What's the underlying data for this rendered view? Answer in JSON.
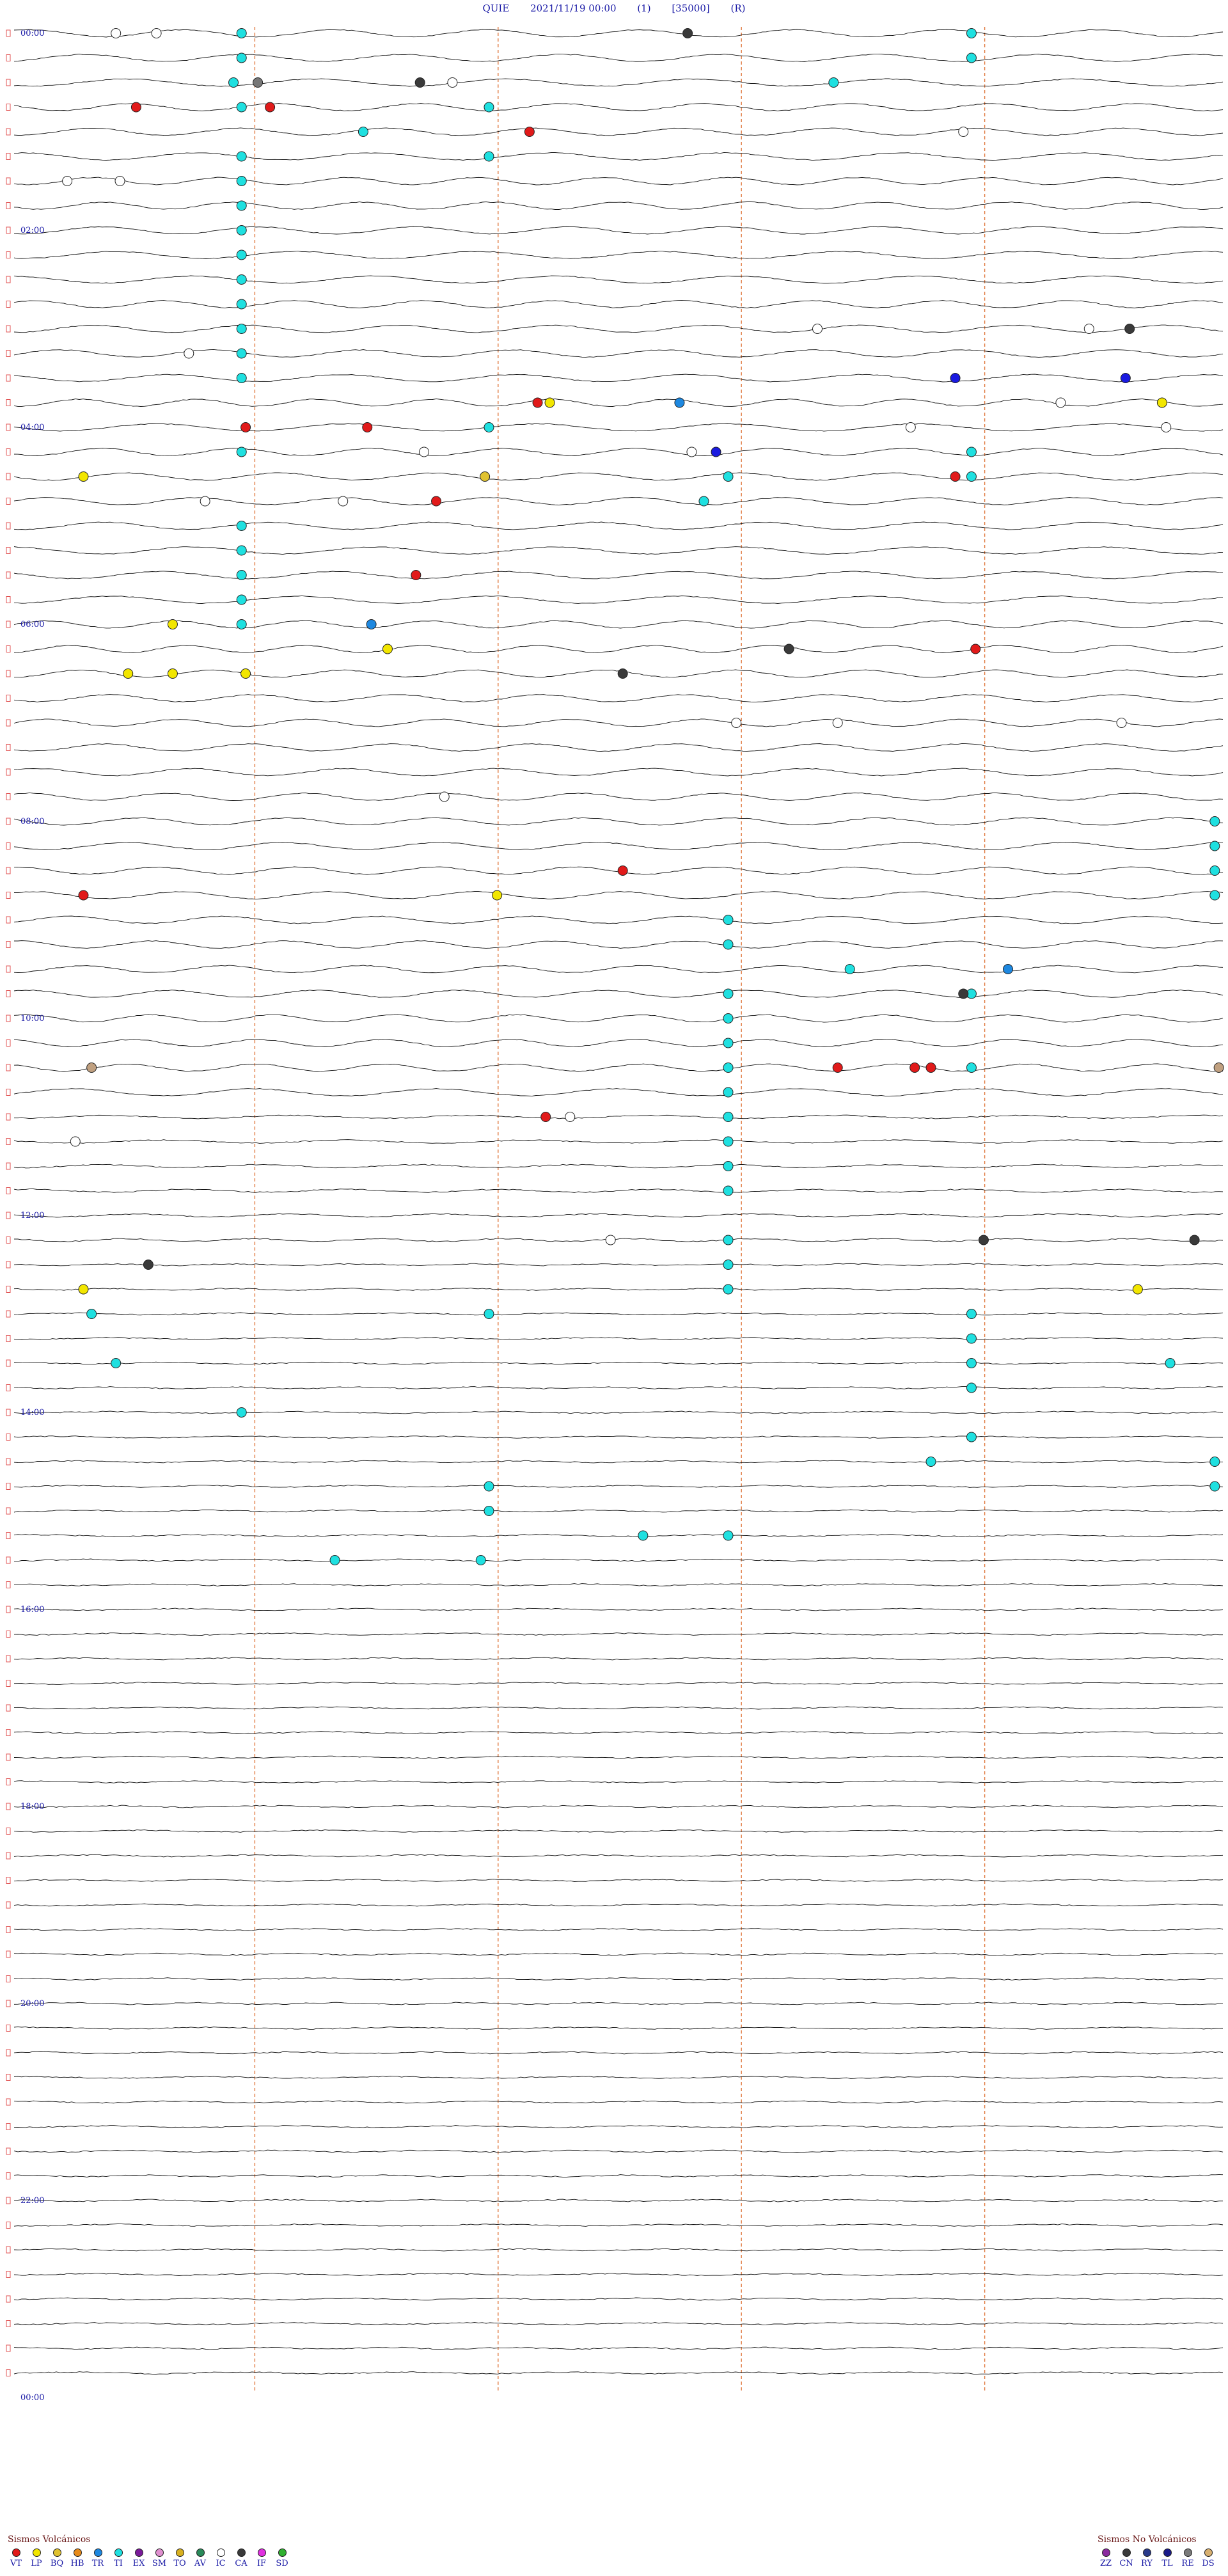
{
  "header": {
    "station": "QUIE",
    "datetime": "2021/11/19 00:00",
    "channel": "(1)",
    "scale": "[35000]",
    "mode": "(R)"
  },
  "chart_data": {
    "type": "scatter",
    "title": "QUIE 2021/11/19 00:00",
    "rows": 96,
    "minutes_per_row": 15,
    "x_range_minutes": [
      0,
      15
    ],
    "hour_labels": [
      {
        "row": 0,
        "label": "00:00"
      },
      {
        "row": 8,
        "label": "02:00"
      },
      {
        "row": 16,
        "label": "04:00"
      },
      {
        "row": 24,
        "label": "06:00"
      },
      {
        "row": 32,
        "label": "08:00"
      },
      {
        "row": 40,
        "label": "10:00"
      },
      {
        "row": 48,
        "label": "12:00"
      },
      {
        "row": 56,
        "label": "14:00"
      },
      {
        "row": 64,
        "label": "16:00"
      },
      {
        "row": 72,
        "label": "18:00"
      },
      {
        "row": 80,
        "label": "20:00"
      },
      {
        "row": 88,
        "label": "22:00"
      },
      {
        "row": 96,
        "label": "00:00"
      }
    ],
    "marker_minutes": [
      3.0,
      6.0,
      9.0,
      12.0
    ],
    "colors": {
      "VT": "#e11a1a",
      "LP": "#f2e600",
      "BQ": "#e0c230",
      "HB": "#e68a1a",
      "TR": "#1e88e0",
      "TI": "#1fe0e0",
      "EX": "#7a1a9a",
      "SM": "#e090d0",
      "TO": "#d8b020",
      "AV": "#2a8a5a",
      "IC": "#ffffff",
      "CA": "#3a3a3a",
      "IF": "#e030e0",
      "SD": "#30b030",
      "ZZ": "#8a2aa0",
      "CN": "#3a3a3a",
      "RY": "#2a3a8a",
      "TL": "#1a1a8a",
      "RE": "#7a7a7a",
      "DS": "#d8b070",
      "GR": "#777777",
      "BG": "#c0a080",
      "DB": "#1a1ae0"
    },
    "events": [
      {
        "type": "IC",
        "row": 0,
        "minute": 1.35
      },
      {
        "type": "IC",
        "row": 0,
        "minute": 1.85
      },
      {
        "type": "TI",
        "row": 0,
        "minute": 2.9
      },
      {
        "type": "CA",
        "row": 0,
        "minute": 8.4
      },
      {
        "type": "TI",
        "row": 0,
        "minute": 11.9
      },
      {
        "type": "TI",
        "row": 1,
        "minute": 2.9
      },
      {
        "type": "TI",
        "row": 1,
        "minute": 11.9
      },
      {
        "type": "CA",
        "row": 2,
        "minute": 5.1
      },
      {
        "type": "IC",
        "row": 2,
        "minute": 5.5
      },
      {
        "type": "TI",
        "row": 2,
        "minute": 2.8
      },
      {
        "type": "GR",
        "row": 2,
        "minute": 3.1
      },
      {
        "type": "TI",
        "row": 2,
        "minute": 10.2
      },
      {
        "type": "VT",
        "row": 3,
        "minute": 1.6
      },
      {
        "type": "VT",
        "row": 3,
        "minute": 3.25
      },
      {
        "type": "TI",
        "row": 3,
        "minute": 2.9
      },
      {
        "type": "TI",
        "row": 3,
        "minute": 5.95
      },
      {
        "type": "TI",
        "row": 4,
        "minute": 4.4
      },
      {
        "type": "VT",
        "row": 4,
        "minute": 6.45
      },
      {
        "type": "IC",
        "row": 4,
        "minute": 11.8
      },
      {
        "type": "TI",
        "row": 5,
        "minute": 2.9
      },
      {
        "type": "TI",
        "row": 5,
        "minute": 5.95
      },
      {
        "type": "TI",
        "row": 6,
        "minute": 2.9
      },
      {
        "type": "IC",
        "row": 6,
        "minute": 0.75
      },
      {
        "type": "IC",
        "row": 6,
        "minute": 1.4
      },
      {
        "type": "TI",
        "row": 7,
        "minute": 2.9
      },
      {
        "type": "TI",
        "row": 8,
        "minute": 2.9
      },
      {
        "type": "TI",
        "row": 9,
        "minute": 2.9
      },
      {
        "type": "TI",
        "row": 10,
        "minute": 2.9
      },
      {
        "type": "TI",
        "row": 11,
        "minute": 2.9
      },
      {
        "type": "TI",
        "row": 12,
        "minute": 2.9
      },
      {
        "type": "IC",
        "row": 12,
        "minute": 10.0
      },
      {
        "type": "IC",
        "row": 12,
        "minute": 13.35
      },
      {
        "type": "CA",
        "row": 12,
        "minute": 13.85
      },
      {
        "type": "TI",
        "row": 13,
        "minute": 2.9
      },
      {
        "type": "IC",
        "row": 13,
        "minute": 2.25
      },
      {
        "type": "DB",
        "row": 14,
        "minute": 11.7
      },
      {
        "type": "DB",
        "row": 14,
        "minute": 13.8
      },
      {
        "type": "TI",
        "row": 14,
        "minute": 2.9
      },
      {
        "type": "VT",
        "row": 15,
        "minute": 6.55
      },
      {
        "type": "LP",
        "row": 15,
        "minute": 6.7
      },
      {
        "type": "TR",
        "row": 15,
        "minute": 8.3
      },
      {
        "type": "IC",
        "row": 15,
        "minute": 13.0
      },
      {
        "type": "LP",
        "row": 15,
        "minute": 14.25
      },
      {
        "type": "VT",
        "row": 16,
        "minute": 2.95
      },
      {
        "type": "VT",
        "row": 16,
        "minute": 4.45
      },
      {
        "type": "TI",
        "row": 16,
        "minute": 5.95
      },
      {
        "type": "IC",
        "row": 16,
        "minute": 11.15
      },
      {
        "type": "IC",
        "row": 16,
        "minute": 14.3
      },
      {
        "type": "TI",
        "row": 17,
        "minute": 2.9
      },
      {
        "type": "IC",
        "row": 17,
        "minute": 5.15
      },
      {
        "type": "IC",
        "row": 17,
        "minute": 8.45
      },
      {
        "type": "TI",
        "row": 17,
        "minute": 11.9
      },
      {
        "type": "DB",
        "row": 17,
        "minute": 8.75
      },
      {
        "type": "LP",
        "row": 18,
        "minute": 0.95
      },
      {
        "type": "VT",
        "row": 18,
        "minute": 11.7
      },
      {
        "type": "TI",
        "row": 18,
        "minute": 11.9
      },
      {
        "type": "BQ",
        "row": 18,
        "minute": 5.9
      },
      {
        "type": "TI",
        "row": 18,
        "minute": 8.9
      },
      {
        "type": "IC",
        "row": 19,
        "minute": 2.45
      },
      {
        "type": "IC",
        "row": 19,
        "minute": 4.15
      },
      {
        "type": "VT",
        "row": 19,
        "minute": 5.3
      },
      {
        "type": "TI",
        "row": 19,
        "minute": 8.6
      },
      {
        "type": "TI",
        "row": 20,
        "minute": 2.9
      },
      {
        "type": "TI",
        "row": 21,
        "minute": 2.9
      },
      {
        "type": "VT",
        "row": 22,
        "minute": 5.05
      },
      {
        "type": "TI",
        "row": 22,
        "minute": 2.9
      },
      {
        "type": "TI",
        "row": 23,
        "minute": 2.9
      },
      {
        "type": "TI",
        "row": 24,
        "minute": 2.9
      },
      {
        "type": "TR",
        "row": 24,
        "minute": 4.5
      },
      {
        "type": "LP",
        "row": 24,
        "minute": 2.05
      },
      {
        "type": "CA",
        "row": 25,
        "minute": 9.65
      },
      {
        "type": "LP",
        "row": 25,
        "minute": 4.7
      },
      {
        "type": "VT",
        "row": 25,
        "minute": 11.95
      },
      {
        "type": "LP",
        "row": 26,
        "minute": 1.5
      },
      {
        "type": "LP",
        "row": 26,
        "minute": 2.05
      },
      {
        "type": "LP",
        "row": 26,
        "minute": 2.95
      },
      {
        "type": "CA",
        "row": 26,
        "minute": 7.6
      },
      {
        "type": "IC",
        "row": 28,
        "minute": 9.0
      },
      {
        "type": "IC",
        "row": 28,
        "minute": 10.25
      },
      {
        "type": "IC",
        "row": 28,
        "minute": 13.75
      },
      {
        "type": "IC",
        "row": 31,
        "minute": 5.4
      },
      {
        "type": "TI",
        "row": 32,
        "minute": 14.9
      },
      {
        "type": "TI",
        "row": 33,
        "minute": 14.9
      },
      {
        "type": "VT",
        "row": 34,
        "minute": 7.6
      },
      {
        "type": "TI",
        "row": 34,
        "minute": 14.9
      },
      {
        "type": "VT",
        "row": 35,
        "minute": 0.95
      },
      {
        "type": "LP",
        "row": 35,
        "minute": 6.05
      },
      {
        "type": "TI",
        "row": 35,
        "minute": 14.9
      },
      {
        "type": "TI",
        "row": 36,
        "minute": 8.9
      },
      {
        "type": "TI",
        "row": 37,
        "minute": 8.9
      },
      {
        "type": "TR",
        "row": 38,
        "minute": 12.35
      },
      {
        "type": "TI",
        "row": 38,
        "minute": 10.4
      },
      {
        "type": "TI",
        "row": 39,
        "minute": 8.9
      },
      {
        "type": "TI",
        "row": 39,
        "minute": 11.9
      },
      {
        "type": "CA",
        "row": 39,
        "minute": 11.8
      },
      {
        "type": "TI",
        "row": 40,
        "minute": 8.9
      },
      {
        "type": "TI",
        "row": 41,
        "minute": 8.9
      },
      {
        "type": "TI",
        "row": 42,
        "minute": 8.9
      },
      {
        "type": "BG",
        "row": 42,
        "minute": 1.05
      },
      {
        "type": "VT",
        "row": 42,
        "minute": 10.25
      },
      {
        "type": "VT",
        "row": 42,
        "minute": 11.2
      },
      {
        "type": "VT",
        "row": 42,
        "minute": 11.4
      },
      {
        "type": "TI",
        "row": 42,
        "minute": 11.9
      },
      {
        "type": "BG",
        "row": 42,
        "minute": 14.95
      },
      {
        "type": "TI",
        "row": 43,
        "minute": 8.9
      },
      {
        "type": "TI",
        "row": 44,
        "minute": 8.9
      },
      {
        "type": "IC",
        "row": 44,
        "minute": 6.95
      },
      {
        "type": "VT",
        "row": 44,
        "minute": 6.65
      },
      {
        "type": "IC",
        "row": 45,
        "minute": 0.85
      },
      {
        "type": "TI",
        "row": 45,
        "minute": 8.9
      },
      {
        "type": "TI",
        "row": 46,
        "minute": 8.9
      },
      {
        "type": "TI",
        "row": 47,
        "minute": 8.9
      },
      {
        "type": "IC",
        "row": 49,
        "minute": 7.45
      },
      {
        "type": "TI",
        "row": 49,
        "minute": 8.9
      },
      {
        "type": "CA",
        "row": 49,
        "minute": 12.05
      },
      {
        "type": "CA",
        "row": 49,
        "minute": 14.65
      },
      {
        "type": "CA",
        "row": 50,
        "minute": 1.75
      },
      {
        "type": "TI",
        "row": 50,
        "minute": 8.9
      },
      {
        "type": "LP",
        "row": 51,
        "minute": 0.95
      },
      {
        "type": "TI",
        "row": 51,
        "minute": 8.9
      },
      {
        "type": "LP",
        "row": 51,
        "minute": 13.95
      },
      {
        "type": "TI",
        "row": 52,
        "minute": 1.05
      },
      {
        "type": "TI",
        "row": 52,
        "minute": 5.95
      },
      {
        "type": "TI",
        "row": 52,
        "minute": 11.9
      },
      {
        "type": "TI",
        "row": 53,
        "minute": 11.9
      },
      {
        "type": "TI",
        "row": 54,
        "minute": 1.35
      },
      {
        "type": "TI",
        "row": 54,
        "minute": 11.9
      },
      {
        "type": "TI",
        "row": 54,
        "minute": 14.35
      },
      {
        "type": "TI",
        "row": 55,
        "minute": 11.9
      },
      {
        "type": "TI",
        "row": 56,
        "minute": 2.9
      },
      {
        "type": "TI",
        "row": 57,
        "minute": 11.9
      },
      {
        "type": "TI",
        "row": 58,
        "minute": 11.4
      },
      {
        "type": "TI",
        "row": 58,
        "minute": 14.9
      },
      {
        "type": "TI",
        "row": 59,
        "minute": 5.95
      },
      {
        "type": "TI",
        "row": 59,
        "minute": 14.9
      },
      {
        "type": "TI",
        "row": 60,
        "minute": 5.95
      },
      {
        "type": "TI",
        "row": 61,
        "minute": 8.9
      },
      {
        "type": "TI",
        "row": 61,
        "minute": 7.85
      },
      {
        "type": "TI",
        "row": 62,
        "minute": 5.85
      },
      {
        "type": "TI",
        "row": 62,
        "minute": 4.05
      }
    ],
    "legend_volcanic": {
      "title": "Sismos Volcánicos",
      "items": [
        "VT",
        "LP",
        "BQ",
        "HB",
        "TR",
        "TI",
        "EX",
        "SM",
        "TO",
        "AV",
        "IC",
        "CA",
        "IF",
        "SD"
      ]
    },
    "legend_nonvolcanic": {
      "title": "Sismos No Volcánicos",
      "items": [
        "ZZ",
        "CN",
        "RY",
        "TL",
        "RE",
        "DS"
      ]
    }
  }
}
